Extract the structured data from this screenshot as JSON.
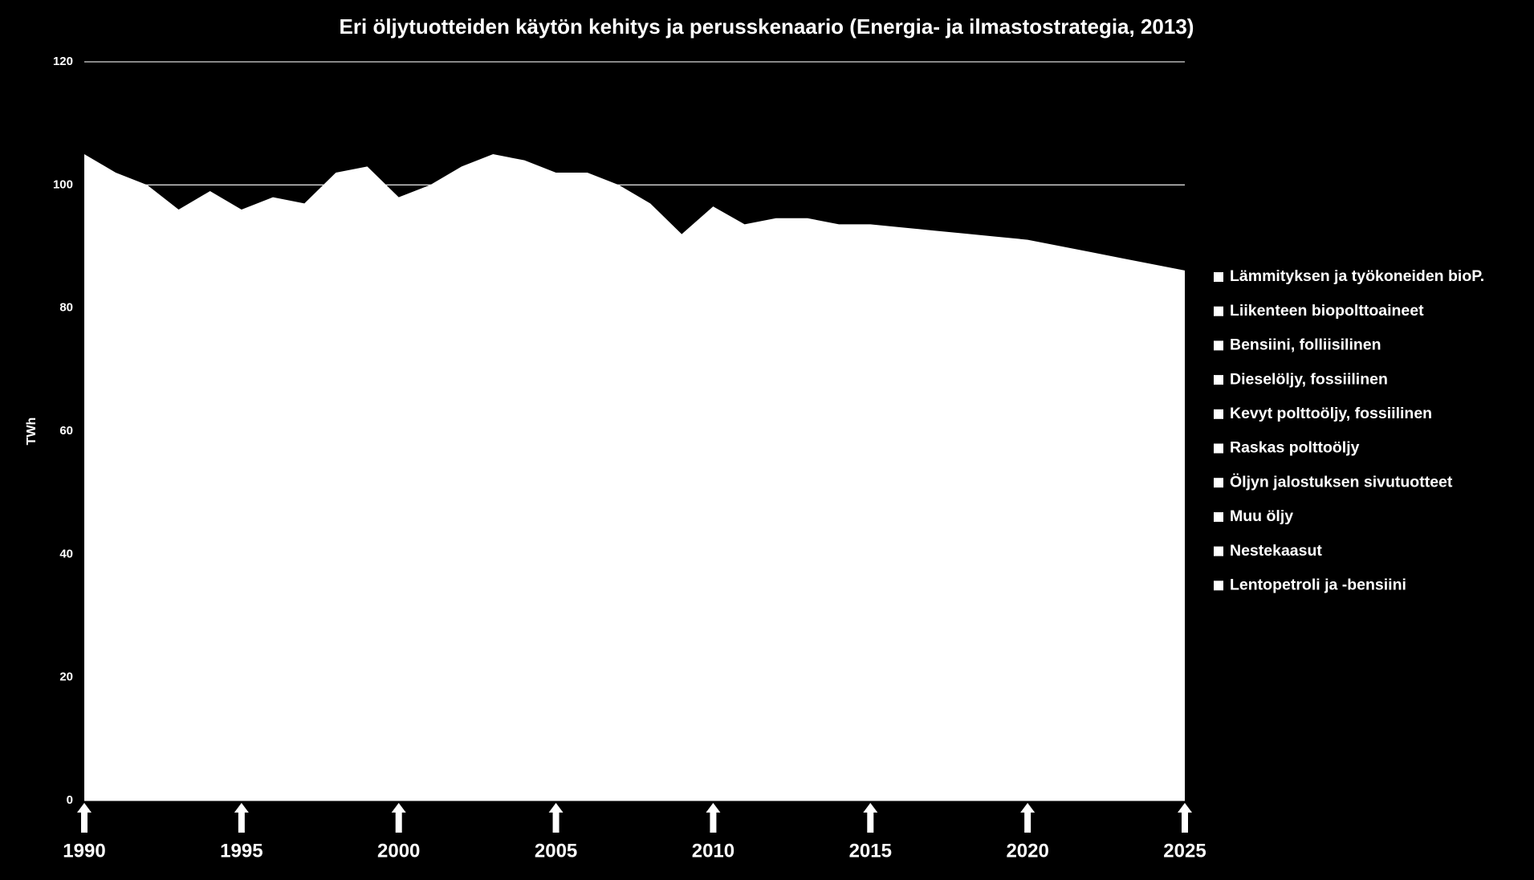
{
  "chart_data": {
    "type": "area",
    "title": "Eri öljytuotteiden käytön kehitys ja perusskenaario (Energia- ja ilmastostrategia, 2013)",
    "y_label": "TWh",
    "x": [
      1990,
      1991,
      1992,
      1993,
      1994,
      1995,
      1996,
      1997,
      1998,
      1999,
      2000,
      2001,
      2002,
      2003,
      2004,
      2005,
      2006,
      2007,
      2008,
      2009,
      2010,
      2011,
      2012,
      2013,
      2014,
      2015,
      2016,
      2017,
      2018,
      2019,
      2020,
      2021,
      2022,
      2023,
      2024,
      2025
    ],
    "values": [
      105,
      102,
      100,
      96,
      99,
      96,
      98,
      97,
      102,
      103,
      98,
      100,
      103,
      105,
      104,
      102,
      102,
      100,
      97,
      92,
      96.5,
      93.6,
      94.6,
      94.6,
      93.6,
      93.6,
      93.1,
      92.6,
      92.1,
      91.6,
      91.1,
      90.1,
      89.1,
      88.1,
      87.1,
      86.1
    ],
    "color": "#ffffff",
    "series": [
      {
        "name": "Lämmityksen ja työkoneiden bioP.",
        "color": "#ffffff"
      },
      {
        "name": "Liikenteen biopolttoaineet",
        "color": "#ffffff"
      },
      {
        "name": "Bensiini, folliisilinen",
        "color": "#ffffff"
      },
      {
        "name": "Dieselöljy, fossiilinen",
        "color": "#ffffff"
      },
      {
        "name": "Kevyt polttoöljy, fossiilinen",
        "color": "#ffffff"
      },
      {
        "name": "Raskas polttoöljy",
        "color": "#ffffff"
      },
      {
        "name": "Öljyn jalostuksen sivutuotteet",
        "color": "#ffffff"
      },
      {
        "name": "Muu öljy",
        "color": "#ffffff"
      },
      {
        "name": "Nestekaasut",
        "color": "#ffffff"
      },
      {
        "name": "Lentopetroli ja -bensiini",
        "color": "#ffffff"
      }
    ],
    "xlim": [
      1990,
      2025
    ],
    "xticks": [
      1990,
      1995,
      2000,
      2005,
      2010,
      2015,
      2020,
      2025
    ],
    "ylim": [
      0,
      120
    ],
    "yticks": [
      0,
      20,
      40,
      60,
      80,
      100,
      120
    ],
    "grid": true,
    "legend": "right"
  }
}
